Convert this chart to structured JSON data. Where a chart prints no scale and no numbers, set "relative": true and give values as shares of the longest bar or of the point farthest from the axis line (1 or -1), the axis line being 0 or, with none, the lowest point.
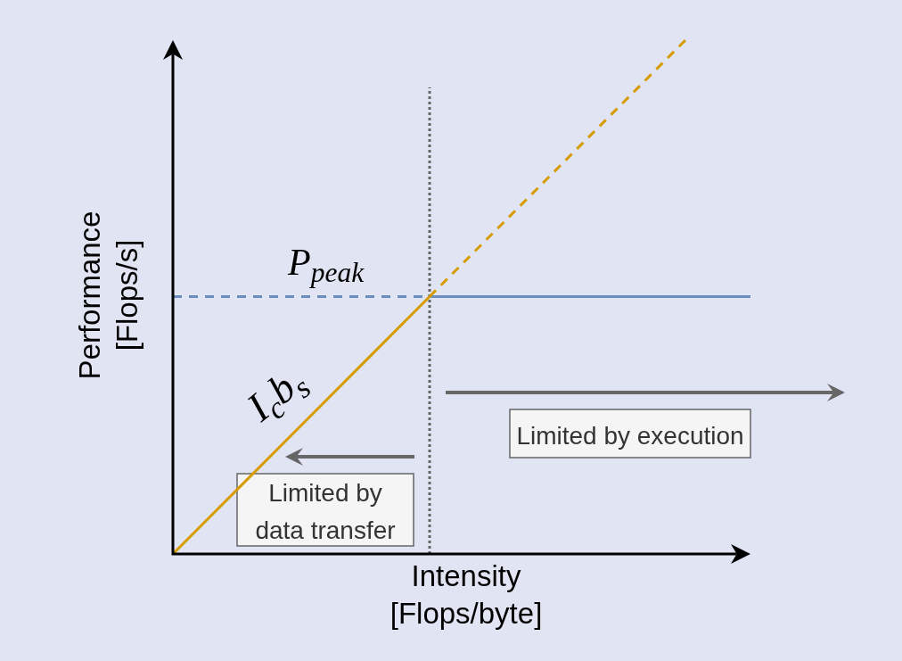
{
  "chart_data": {
    "type": "line",
    "relative": true,
    "xlabel": "Intensity [Flops/byte]",
    "ylabel": "Performance [Flops/s]",
    "categories": [
      null,
      null,
      null,
      null,
      null,
      null,
      null,
      null,
      null,
      null
    ],
    "series": [
      {
        "color": "#d79b00",
        "line_style": "solid",
        "values": [
          0,
          0.125,
          0.25,
          0.375,
          0.5,
          null,
          null,
          null,
          null,
          null
        ]
      },
      {
        "color": "#d79b00",
        "line_style": "dashed",
        "values": [
          null,
          null,
          null,
          null,
          0.5,
          0.625,
          0.75,
          0.875,
          1,
          null
        ]
      },
      {
        "color": "#6c8ebf",
        "line_style": "dashed",
        "values": [
          0.5,
          0.5,
          0.5,
          0.5,
          0.5,
          null,
          null,
          null,
          null,
          null
        ]
      },
      {
        "color": "#6c8ebf",
        "line_style": "solid",
        "values": [
          null,
          null,
          null,
          null,
          0.5,
          0.5,
          0.5,
          0.5,
          0.5,
          0.5
        ]
      }
    ],
    "annotations": [
      "P$_{peak}$",
      "I$_{c}$b$_{s}$",
      "Limited by data transfer",
      "Limited by execution"
    ]
  }
}
